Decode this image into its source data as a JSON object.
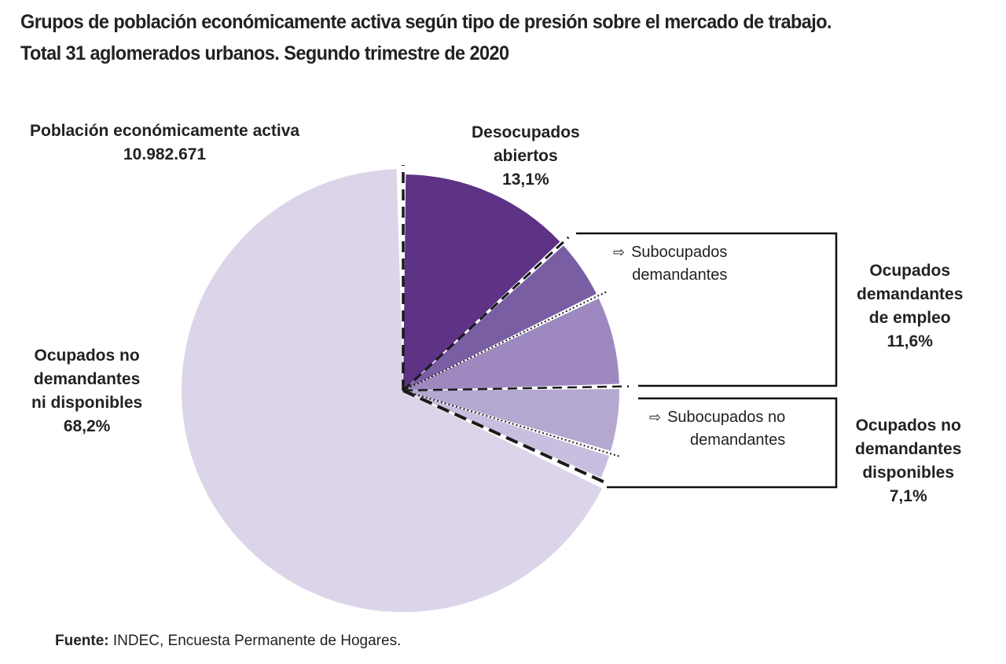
{
  "title": {
    "line1": "Grupos de población económicamente activa según tipo de presión sobre el mercado de trabajo.",
    "line2": "Total 31 aglomerados urbanos. Segundo trimestre de 2020"
  },
  "total": {
    "label": "Población económicamente activa",
    "value": "10.982.671"
  },
  "labels": {
    "desocupados": {
      "line1": "Desocupados",
      "line2": "abiertos",
      "pct": "13,1%"
    },
    "ocupados_demandantes": {
      "line1": "Ocupados",
      "line2": "demandantes",
      "line3": "de empleo",
      "pct": "11,6%"
    },
    "ocupados_no_dem_disp": {
      "line1": "Ocupados no",
      "line2": "demandantes",
      "line3": "disponibles",
      "pct": "7,1%"
    },
    "ocupados_no_dem_ni_disp": {
      "line1": "Ocupados no",
      "line2": "demandantes",
      "line3": "ni disponibles",
      "pct": "68,2%"
    },
    "sub_dem": {
      "line1": "Subocupados",
      "line2": "demandantes"
    },
    "sub_no_dem": {
      "line1": "Subocupados no",
      "line2": "demandantes"
    }
  },
  "source": {
    "bold": "Fuente:",
    "text": " INDEC, Encuesta Permanente de Hogares."
  },
  "chart_data": {
    "type": "pie",
    "title": "Grupos de población económicamente activa según tipo de presión sobre el mercado de trabajo. Total 31 aglomerados urbanos. Segundo trimestre de 2020",
    "total": 10982671,
    "slices": [
      {
        "label": "Desocupados abiertos",
        "value": 13.1,
        "color": "#5e3285"
      },
      {
        "label": "Subocupados demandantes",
        "value": 4.7,
        "color": "#7a5ea3"
      },
      {
        "label": "Ocupados demandantes de empleo",
        "value": 6.9,
        "color": "#9d88bf",
        "group": "Ocupados demandantes de empleo"
      },
      {
        "label": "Subocupados no demandantes",
        "value": 5.0,
        "color": "#b5a8d0",
        "group": "Ocupados no demandantes disponibles"
      },
      {
        "label": "Ocupados no demandantes disponibles",
        "value": 2.1,
        "color": "#c9bedf",
        "group": "Ocupados no demandantes disponibles"
      },
      {
        "label": "Ocupados no demandantes ni disponibles",
        "value": 68.2,
        "color": "#dcd5e9"
      }
    ],
    "groups": [
      {
        "label": "Ocupados demandantes de empleo",
        "value": 11.6
      },
      {
        "label": "Ocupados no demandantes disponibles",
        "value": 7.1
      }
    ]
  }
}
